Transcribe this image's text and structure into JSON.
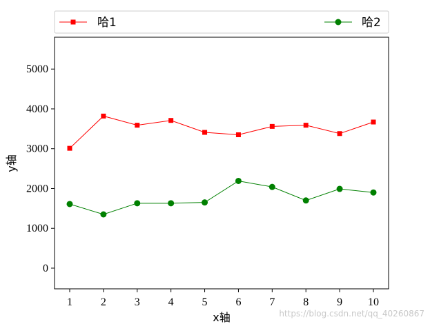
{
  "chart_data": {
    "type": "line",
    "x": [
      1,
      2,
      3,
      4,
      5,
      6,
      7,
      8,
      9,
      10
    ],
    "series": [
      {
        "name": "哈1",
        "values": [
          3010,
          3820,
          3590,
          3710,
          3410,
          3350,
          3560,
          3590,
          3380,
          3670
        ],
        "color": "#ff0000",
        "marker": "square"
      },
      {
        "name": "哈2",
        "values": [
          1610,
          1350,
          1630,
          1630,
          1650,
          2190,
          2040,
          1700,
          1990,
          1900
        ],
        "color": "#008000",
        "marker": "circle"
      }
    ],
    "xlabel": "x轴",
    "ylabel": "y轴",
    "xlim": [
      0.55,
      10.45
    ],
    "ylim": [
      -520,
      5800
    ],
    "xticks": [
      "1",
      "2",
      "3",
      "4",
      "5",
      "6",
      "7",
      "8",
      "9",
      "10"
    ],
    "yticks": [
      "0",
      "1000",
      "2000",
      "3000",
      "4000",
      "5000"
    ],
    "ytick_values": [
      0,
      1000,
      2000,
      3000,
      4000,
      5000
    ],
    "grid": false,
    "legend_position": "top, outside axes, expanded"
  },
  "watermark": "https://blog.csdn.net/qq_40260867"
}
